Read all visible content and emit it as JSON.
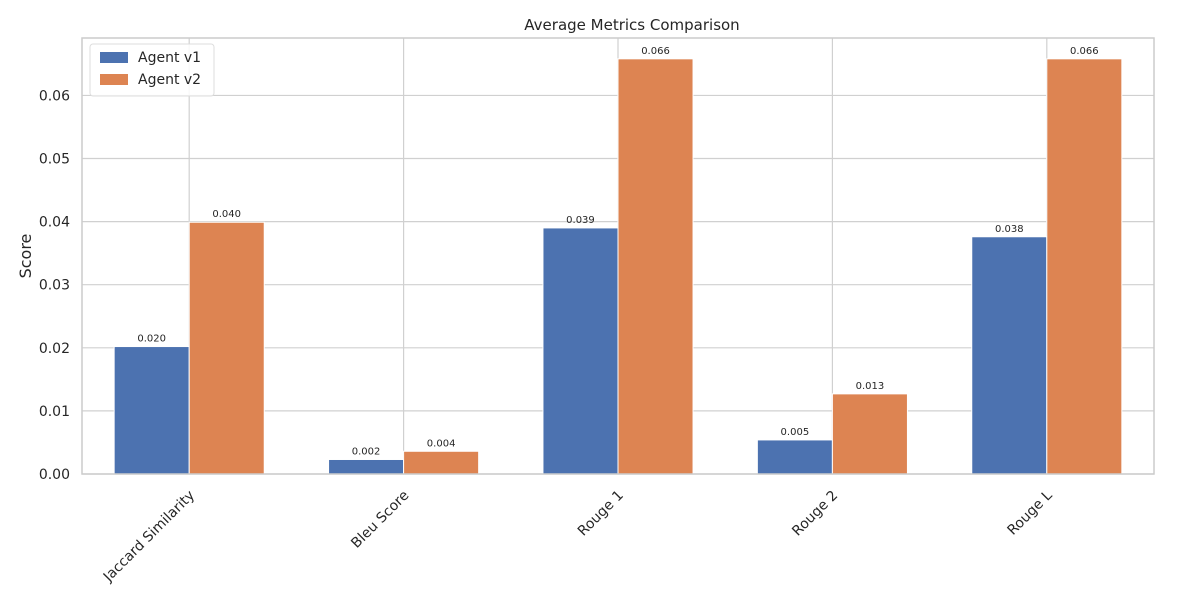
{
  "chart_data": {
    "type": "bar",
    "title": "Average Metrics Comparison",
    "xlabel": "",
    "ylabel": "Score",
    "categories": [
      "Jaccard Similarity",
      "Bleu Score",
      "Rouge 1",
      "Rouge 2",
      "Rouge L"
    ],
    "series": [
      {
        "name": "Agent v1",
        "color": "#4c72b0",
        "values": [
          0.0202,
          0.0023,
          0.039,
          0.0054,
          0.0376
        ],
        "labels": [
          "0.020",
          "0.002",
          "0.039",
          "0.005",
          "0.038"
        ]
      },
      {
        "name": "Agent v2",
        "color": "#dd8452",
        "values": [
          0.0399,
          0.0036,
          0.0658,
          0.0127,
          0.0658
        ],
        "labels": [
          "0.040",
          "0.004",
          "0.066",
          "0.013",
          "0.066"
        ]
      }
    ],
    "ylim": [
      0,
      0.0691
    ],
    "yticks": [
      0.0,
      0.01,
      0.02,
      0.03,
      0.04,
      0.05,
      0.06
    ],
    "ytick_labels": [
      "0.00",
      "0.01",
      "0.02",
      "0.03",
      "0.04",
      "0.05",
      "0.06"
    ],
    "grid": true,
    "legend_position": "top-left",
    "colors": {
      "grid": "#d0d0d0",
      "axis": "#cccccc",
      "text": "#262626"
    }
  }
}
